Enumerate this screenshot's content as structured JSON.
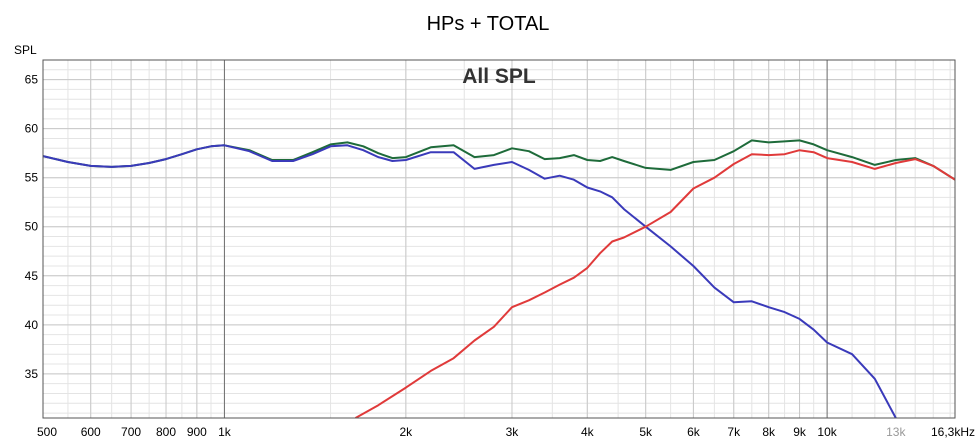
{
  "chart_data": {
    "type": "line",
    "title": "HPs + TOTAL",
    "subtitle": "All SPL",
    "ylabel": "SPL",
    "xunit": "Hz",
    "xscale": "log",
    "xlim": [
      500,
      16300
    ],
    "ylim": [
      30.5,
      67
    ],
    "grid": true,
    "y_ticks": [
      35,
      40,
      45,
      50,
      55,
      60,
      65
    ],
    "x_ticks": [
      {
        "value": 500,
        "label": "500"
      },
      {
        "value": 600,
        "label": "600"
      },
      {
        "value": 700,
        "label": "700"
      },
      {
        "value": 800,
        "label": "800"
      },
      {
        "value": 900,
        "label": "900"
      },
      {
        "value": 1000,
        "label": "1k"
      },
      {
        "value": 2000,
        "label": "2k"
      },
      {
        "value": 3000,
        "label": "3k"
      },
      {
        "value": 4000,
        "label": "4k"
      },
      {
        "value": 5000,
        "label": "5k"
      },
      {
        "value": 6000,
        "label": "6k"
      },
      {
        "value": 7000,
        "label": "7k"
      },
      {
        "value": 8000,
        "label": "8k"
      },
      {
        "value": 9000,
        "label": "9k"
      },
      {
        "value": 10000,
        "label": "10k"
      },
      {
        "value": 13000,
        "label": "13k",
        "muted": true
      },
      {
        "value": 16300,
        "label": "16,3kHz"
      }
    ],
    "series": [
      {
        "color": "#1e6b3a",
        "x": [
          500,
          550,
          600,
          650,
          700,
          750,
          800,
          850,
          900,
          950,
          1000,
          1100,
          1200,
          1300,
          1400,
          1500,
          1600,
          1700,
          1800,
          1900,
          2000,
          2200,
          2400,
          2600,
          2800,
          3000,
          3200,
          3400,
          3600,
          3800,
          4000,
          4200,
          4400,
          4600,
          5000,
          5500,
          6000,
          6500,
          7000,
          7500,
          8000,
          8500,
          9000,
          9500,
          10000,
          11000,
          12000,
          13000,
          14000,
          15000,
          16300
        ],
        "y": [
          57.2,
          56.6,
          56.2,
          56.1,
          56.2,
          56.5,
          56.9,
          57.4,
          57.9,
          58.2,
          58.3,
          57.8,
          56.8,
          56.8,
          57.6,
          58.4,
          58.6,
          58.2,
          57.5,
          57.0,
          57.1,
          58.1,
          58.3,
          57.1,
          57.3,
          58.0,
          57.7,
          56.9,
          57.0,
          57.3,
          56.8,
          56.7,
          57.1,
          56.7,
          56.0,
          55.8,
          56.6,
          56.8,
          57.7,
          58.8,
          58.6,
          58.7,
          58.8,
          58.4,
          57.8,
          57.1,
          56.3,
          56.8,
          57.0,
          56.2,
          54.8
        ]
      },
      {
        "color": "#3a3aba",
        "x": [
          500,
          550,
          600,
          650,
          700,
          750,
          800,
          850,
          900,
          950,
          1000,
          1100,
          1200,
          1300,
          1400,
          1500,
          1600,
          1700,
          1800,
          1900,
          2000,
          2200,
          2400,
          2600,
          2800,
          3000,
          3200,
          3400,
          3600,
          3800,
          4000,
          4200,
          4400,
          4600,
          5000,
          5500,
          6000,
          6500,
          7000,
          7500,
          8000,
          8500,
          9000,
          9500,
          10000,
          11000,
          12000,
          13000
        ],
        "y": [
          57.2,
          56.6,
          56.2,
          56.1,
          56.2,
          56.5,
          56.9,
          57.4,
          57.9,
          58.2,
          58.3,
          57.7,
          56.7,
          56.7,
          57.4,
          58.2,
          58.3,
          57.8,
          57.1,
          56.7,
          56.8,
          57.6,
          57.6,
          55.9,
          56.3,
          56.6,
          55.8,
          54.9,
          55.2,
          54.8,
          54.0,
          53.6,
          53.0,
          51.8,
          50.0,
          48.0,
          46.0,
          43.8,
          42.3,
          42.4,
          41.8,
          41.3,
          40.6,
          39.5,
          38.2,
          37.0,
          34.5,
          30.5
        ]
      },
      {
        "color": "#e03a3a",
        "x": [
          1650,
          1800,
          2000,
          2200,
          2400,
          2600,
          2800,
          3000,
          3200,
          3400,
          3600,
          3800,
          4000,
          4200,
          4400,
          4600,
          5000,
          5500,
          6000,
          6500,
          7000,
          7500,
          8000,
          8500,
          9000,
          9500,
          10000,
          11000,
          12000,
          13000,
          14000,
          15000,
          16300
        ],
        "y": [
          30.5,
          31.8,
          33.6,
          35.3,
          36.6,
          38.4,
          39.8,
          41.8,
          42.5,
          43.3,
          44.1,
          44.8,
          45.8,
          47.3,
          48.5,
          48.9,
          50.0,
          51.5,
          53.9,
          55.0,
          56.4,
          57.4,
          57.3,
          57.4,
          57.8,
          57.6,
          57.0,
          56.6,
          55.9,
          56.5,
          56.9,
          56.2,
          54.8
        ]
      }
    ]
  }
}
